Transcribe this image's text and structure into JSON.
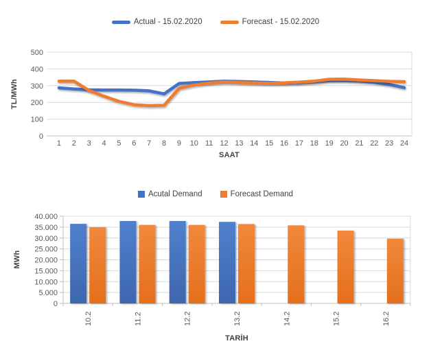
{
  "chart_data": [
    {
      "type": "line",
      "title": "",
      "x": [
        1,
        2,
        3,
        4,
        5,
        6,
        7,
        8,
        9,
        10,
        11,
        12,
        13,
        14,
        15,
        16,
        17,
        18,
        19,
        20,
        21,
        22,
        23,
        24
      ],
      "xlabel": "SAAT",
      "ylabel": "TL/MWh",
      "ylim": [
        0,
        500
      ],
      "y_ticks": [
        0,
        100,
        200,
        300,
        400,
        500
      ],
      "y_tick_labels": [
        "0",
        "100",
        "200",
        "300",
        "400",
        "500"
      ],
      "grid": true,
      "legend_position": "top",
      "series": [
        {
          "name": "Actual - 15.02.2020",
          "color": "#4472C4",
          "values": [
            287,
            280,
            275,
            274,
            274,
            273,
            269,
            251,
            313,
            318,
            322,
            327,
            325,
            322,
            319,
            316,
            318,
            323,
            330,
            331,
            328,
            320,
            307,
            288
          ]
        },
        {
          "name": "Forecast - 15.02.2020",
          "color": "#ED7D31",
          "values": [
            327,
            327,
            271,
            237,
            206,
            186,
            181,
            183,
            284,
            304,
            315,
            323,
            319,
            316,
            314,
            317,
            321,
            327,
            338,
            339,
            334,
            330,
            326,
            324
          ]
        }
      ]
    },
    {
      "type": "bar",
      "title": "",
      "categories": [
        "10.2",
        "11.2",
        "12.2",
        "13.2",
        "14.2",
        "15.2",
        "16.2"
      ],
      "xlabel": "TARİH",
      "ylabel": "MWh",
      "ylim": [
        0,
        40000
      ],
      "y_ticks": [
        0,
        5000,
        10000,
        15000,
        20000,
        25000,
        30000,
        35000,
        40000
      ],
      "y_tick_labels": [
        "0",
        "5.000",
        "10.000",
        "15.000",
        "20.000",
        "25.000",
        "30.000",
        "35.000",
        "40.000"
      ],
      "grid": true,
      "legend_position": "top",
      "series": [
        {
          "name": "Acutal Demand",
          "color": "#4472C4",
          "values": [
            36500,
            37800,
            37800,
            37400,
            null,
            null,
            null
          ]
        },
        {
          "name": "Forecast Demand",
          "color": "#ED7D31",
          "values": [
            35000,
            36000,
            36000,
            36400,
            35800,
            33400,
            29700
          ]
        }
      ]
    }
  ],
  "colors": {
    "actual_blue": "#4472C4",
    "forecast_orange": "#ED7D31",
    "gridline": "#D9D9D9",
    "axis_line": "#BFBFBF",
    "tick_text": "#595959",
    "axis_title_text": "#404040"
  }
}
